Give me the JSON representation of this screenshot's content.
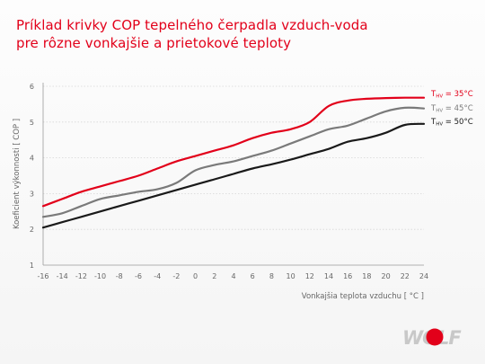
{
  "header": {
    "title_line1": "Príklad krivky COP tepelného čerpadla vzduch-voda",
    "title_line2": "pre rôzne vonkajšie a prietokové teploty"
  },
  "logo": {
    "text": "WOLF",
    "accent": "#e2001a"
  },
  "chart_data": {
    "type": "line",
    "xlabel": "Vonkajšia teplota vzduchu [ °C ]",
    "ylabel": "Koeficient výkonnosti [ COP ]",
    "xlim": [
      -16,
      24
    ],
    "ylim": [
      1,
      6
    ],
    "x_ticks": [
      -16,
      -14,
      -12,
      -10,
      -8,
      -6,
      -4,
      -2,
      0,
      2,
      4,
      6,
      8,
      10,
      12,
      14,
      16,
      18,
      20,
      22,
      24
    ],
    "y_ticks": [
      1,
      2,
      3,
      4,
      5,
      6
    ],
    "grid": "horizontal",
    "legend": "right-end-labels",
    "x": [
      -16,
      -14,
      -12,
      -10,
      -8,
      -6,
      -4,
      -2,
      0,
      2,
      4,
      6,
      8,
      10,
      12,
      14,
      16,
      18,
      20,
      22,
      24
    ],
    "series": [
      {
        "name": "THV = 35°C",
        "label_main": "T",
        "label_sub": "HV",
        "label_rest": " = 35°C",
        "color": "#e2001a",
        "values": [
          2.65,
          2.85,
          3.05,
          3.2,
          3.35,
          3.5,
          3.7,
          3.9,
          4.05,
          4.2,
          4.35,
          4.55,
          4.7,
          4.8,
          5.0,
          5.45,
          5.6,
          5.65,
          5.67,
          5.68,
          5.68
        ]
      },
      {
        "name": "THV = 45°C",
        "label_main": "T",
        "label_sub": "HV",
        "label_rest": " = 45°C",
        "color": "#7a7a7a",
        "values": [
          2.35,
          2.45,
          2.65,
          2.85,
          2.95,
          3.05,
          3.12,
          3.3,
          3.65,
          3.8,
          3.9,
          4.05,
          4.2,
          4.4,
          4.6,
          4.8,
          4.9,
          5.1,
          5.3,
          5.4,
          5.38
        ]
      },
      {
        "name": "THV = 50°C",
        "label_main": "T",
        "label_sub": "HV",
        "label_rest": " = 50°C",
        "color": "#1a1a1a",
        "values": [
          2.05,
          2.2,
          2.35,
          2.5,
          2.65,
          2.8,
          2.95,
          3.1,
          3.25,
          3.4,
          3.55,
          3.7,
          3.82,
          3.95,
          4.1,
          4.25,
          4.45,
          4.55,
          4.7,
          4.92,
          4.95
        ]
      }
    ]
  }
}
